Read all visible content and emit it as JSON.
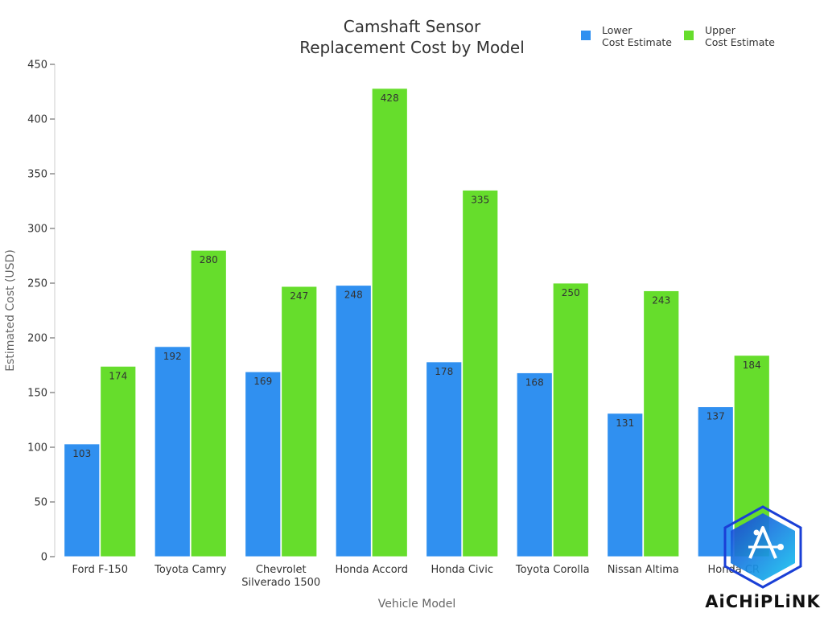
{
  "chart_data": {
    "type": "bar",
    "title": [
      "Camshaft Sensor",
      "Replacement Cost by Model"
    ],
    "xlabel": "Vehicle Model",
    "ylabel": "Estimated Cost (USD)",
    "ylim": [
      0,
      450
    ],
    "yticks": [
      0,
      50,
      100,
      150,
      200,
      250,
      300,
      350,
      400,
      450
    ],
    "grid": false,
    "legend_position": "top-right",
    "categories": [
      [
        "Ford F-150"
      ],
      [
        "Toyota Camry"
      ],
      [
        "Chevrolet",
        "Silverado 1500"
      ],
      [
        "Honda Accord"
      ],
      [
        "Honda Civic"
      ],
      [
        "Toyota Corolla"
      ],
      [
        "Nissan Altima"
      ],
      [
        "Honda CR"
      ]
    ],
    "series": [
      {
        "name": [
          "Lower",
          "Cost Estimate"
        ],
        "color": "#3090f0",
        "values": [
          103,
          192,
          169,
          248,
          178,
          168,
          131,
          137
        ]
      },
      {
        "name": [
          "Upper",
          "Cost Estimate"
        ],
        "color": "#66dd2c",
        "values": [
          174,
          280,
          247,
          428,
          335,
          250,
          243,
          184
        ]
      }
    ]
  },
  "watermark": {
    "text": "AiCHiPLiNK",
    "colors": [
      "#1a3fd6",
      "#17c9f0"
    ]
  }
}
